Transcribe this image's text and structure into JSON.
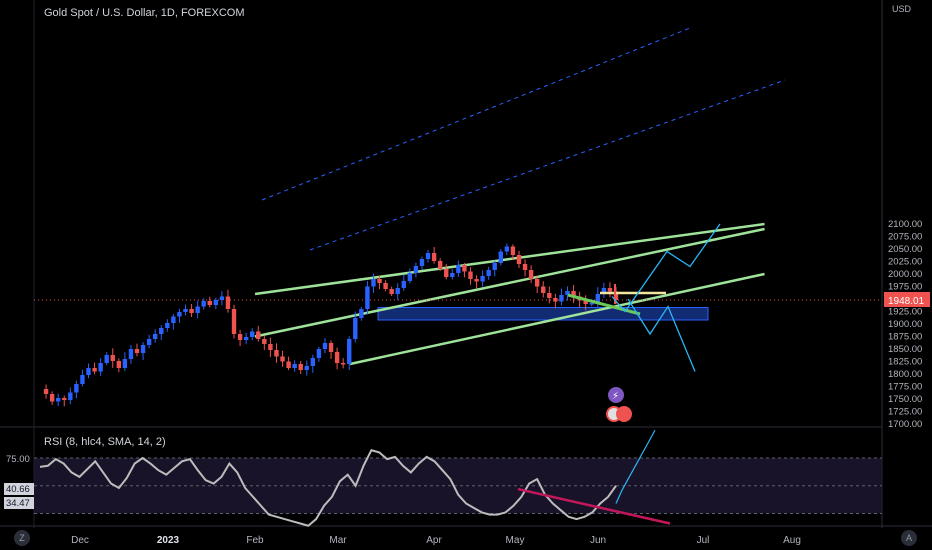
{
  "header": {
    "title": "Gold Spot / U.S. Dollar, 1D, FOREXCOM"
  },
  "price_axis": {
    "currency": "USD",
    "ticks": [
      "2100.00",
      "2075.00",
      "2050.00",
      "2025.00",
      "2000.00",
      "1975.00",
      "1950.00",
      "1925.00",
      "1900.00",
      "1875.00",
      "1850.00",
      "1825.00",
      "1800.00",
      "1775.00",
      "1750.00",
      "1725.00",
      "1700.00"
    ],
    "last_price": "1948.01"
  },
  "rsi_panel": {
    "label": "RSI (8, hlc4, SMA, 14, 2)",
    "ticks": [
      "75.00",
      "50.00"
    ],
    "badges": [
      "40.66",
      "34.47"
    ]
  },
  "time_axis": {
    "labels": [
      "Dec",
      "2023",
      "Feb",
      "Mar",
      "Apr",
      "May",
      "Jun",
      "Jul",
      "Aug"
    ]
  },
  "corners": {
    "left": "Z",
    "right": "A"
  },
  "colors": {
    "up": "#2962ff",
    "down": "#ef5350",
    "channel": "#9fe39a",
    "zone": "#2962ff",
    "projection": "#29b6f6",
    "rsi": "#bcbcbc",
    "divergence": "#c2185b"
  },
  "chart_data": {
    "type": "candlestick",
    "title": "Gold Spot / U.S. Dollar, 1D, FOREXCOM",
    "ylim": [
      1700,
      2100
    ],
    "x": [
      "Dec",
      "2023",
      "Feb",
      "Mar",
      "Apr",
      "May",
      "Jun",
      "Jul",
      "Aug"
    ],
    "price_path": [
      1770,
      1760,
      1745,
      1752,
      1748,
      1763,
      1780,
      1798,
      1812,
      1805,
      1822,
      1838,
      1826,
      1812,
      1830,
      1850,
      1842,
      1858,
      1870,
      1880,
      1892,
      1902,
      1915,
      1924,
      1930,
      1922,
      1935,
      1946,
      1938,
      1948,
      1955,
      1930,
      1880,
      1868,
      1874,
      1885,
      1870,
      1860,
      1848,
      1835,
      1825,
      1812,
      1820,
      1808,
      1816,
      1832,
      1850,
      1862,
      1844,
      1822,
      1820,
      1870,
      1912,
      1930,
      1975,
      1990,
      1982,
      1970,
      1960,
      1972,
      1986,
      2002,
      2016,
      2030,
      2042,
      2026,
      2010,
      1994,
      2002,
      2018,
      2005,
      1990,
      1985,
      1996,
      2008,
      2022,
      2045,
      2055,
      2038,
      2020,
      2008,
      1990,
      1975,
      1962,
      1952,
      1945,
      1958,
      1966,
      1955,
      1947,
      1940,
      1942,
      1960,
      1972,
      1965,
      1948
    ],
    "rsi_path": [
      67,
      68,
      74,
      70,
      62,
      58,
      65,
      72,
      62,
      52,
      48,
      57,
      70,
      75,
      70,
      64,
      60,
      66,
      72,
      74,
      64,
      55,
      52,
      58,
      70,
      62,
      48,
      40,
      32,
      24,
      22,
      20,
      18,
      16,
      14,
      20,
      32,
      40,
      54,
      60,
      50,
      68,
      82,
      80,
      74,
      76,
      68,
      62,
      70,
      76,
      72,
      64,
      56,
      42,
      34,
      30,
      26,
      24,
      24,
      26,
      32,
      40,
      52,
      56,
      42,
      34,
      28,
      22,
      20,
      22,
      26,
      34,
      40,
      50
    ],
    "channel_lines": [
      {
        "role": "upper",
        "from": [
          "2023-02-01",
          1960
        ],
        "to": [
          "2023-07-28",
          2100
        ]
      },
      {
        "role": "middle",
        "from": [
          "2023-02-01",
          1875
        ],
        "to": [
          "2023-07-28",
          2090
        ]
      },
      {
        "role": "lower",
        "from": [
          "2023-03-06",
          1820
        ],
        "to": [
          "2023-07-28",
          2000
        ]
      }
    ],
    "support_zone": [
      1908,
      1933
    ],
    "rsi_levels": [
      75,
      50
    ]
  }
}
